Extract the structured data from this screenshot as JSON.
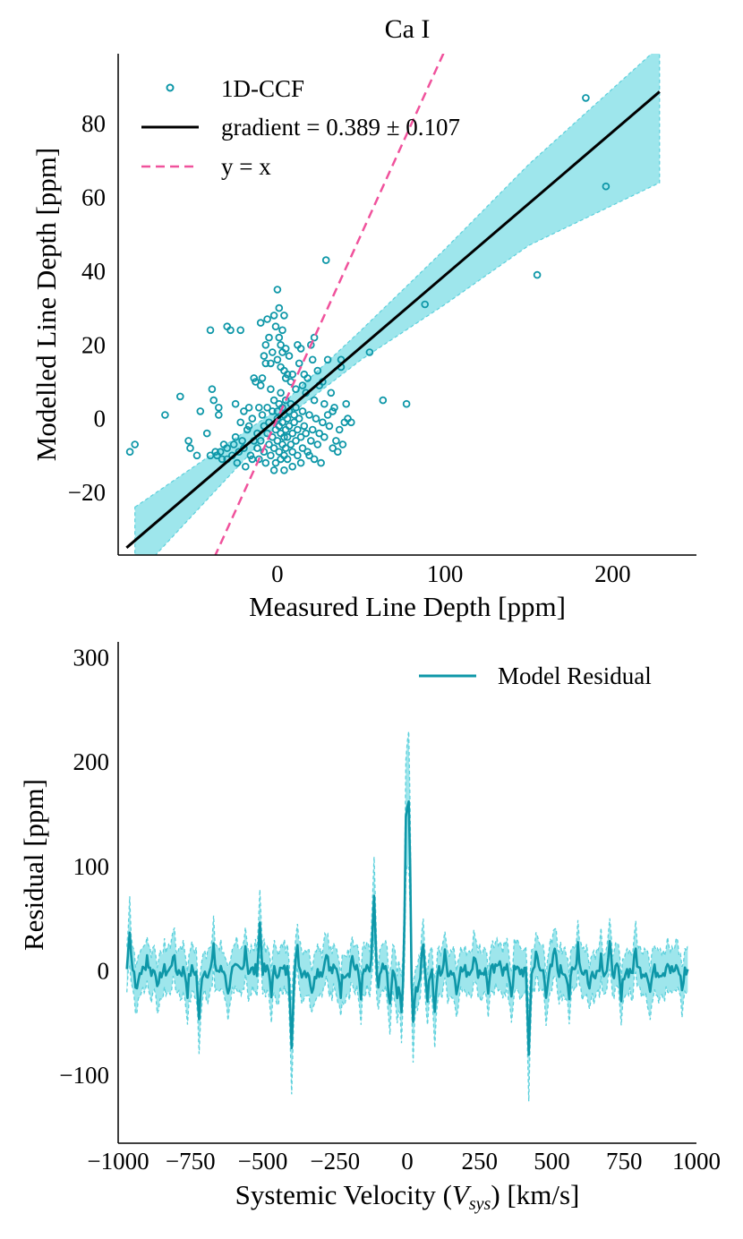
{
  "colors": {
    "series": "#0e97a8",
    "band": "#9ee6ec",
    "band_edge": "#5cd0dc",
    "fit": "#000000",
    "identity": "#f0529c",
    "axis": "#000000"
  },
  "chart_data": [
    {
      "type": "scatter",
      "title": "Ca I",
      "xlabel": "Measured Line Depth [ppm]",
      "ylabel": "Modelled Line Depth [ppm]",
      "xlim": [
        -95,
        250
      ],
      "ylim": [
        -37,
        99
      ],
      "xticks": [
        0,
        100,
        200
      ],
      "yticks": [
        -20,
        0,
        20,
        40,
        60,
        80
      ],
      "xtick_labels": [
        "0",
        "100",
        "200"
      ],
      "ytick_labels": [
        "−20",
        "0",
        "20",
        "40",
        "60",
        "80"
      ],
      "legend": {
        "position": "top-left",
        "entries": [
          "1D-CCF",
          "gradient = 0.389 ± 0.107",
          "y = x"
        ]
      },
      "fit": {
        "gradient": 0.389,
        "gradient_err": 0.107,
        "x_range": [
          -90,
          228
        ]
      },
      "identity_line": {
        "x_range": [
          -80,
          100
        ]
      },
      "band": {
        "x": [
          -85,
          0,
          10,
          50,
          100,
          150,
          228
        ],
        "upper": [
          -24,
          2.5,
          7,
          24,
          46,
          69,
          101
        ],
        "lower": [
          -43,
          -1.5,
          2,
          16,
          31,
          47,
          64
        ]
      },
      "points": [
        [
          -88,
          -9
        ],
        [
          -85,
          -7
        ],
        [
          -67,
          1
        ],
        [
          -58,
          6
        ],
        [
          -53,
          -6
        ],
        [
          -52,
          -8
        ],
        [
          -48,
          -10
        ],
        [
          -46,
          2
        ],
        [
          -42,
          -4
        ],
        [
          -40,
          -10
        ],
        [
          -40,
          24
        ],
        [
          -39,
          8
        ],
        [
          -38,
          5
        ],
        [
          -37,
          -9
        ],
        [
          -36,
          -10
        ],
        [
          -35,
          1
        ],
        [
          -35,
          3
        ],
        [
          -34,
          -9
        ],
        [
          -33,
          -11
        ],
        [
          -30,
          -8
        ],
        [
          -30,
          25
        ],
        [
          -28,
          24
        ],
        [
          -27,
          -10
        ],
        [
          -26,
          -7
        ],
        [
          -25,
          -5
        ],
        [
          -25,
          4
        ],
        [
          -24,
          -12
        ],
        [
          -22,
          24
        ],
        [
          -22,
          -1
        ],
        [
          -21,
          -6
        ],
        [
          -20,
          -8
        ],
        [
          -20,
          2
        ],
        [
          -18,
          -3
        ],
        [
          -17,
          3
        ],
        [
          -16,
          -10
        ],
        [
          -15,
          0
        ],
        [
          -15,
          -11
        ],
        [
          -14,
          11
        ],
        [
          -13,
          10
        ],
        [
          -12,
          -4
        ],
        [
          -12,
          -8
        ],
        [
          -11,
          3
        ],
        [
          -10,
          -6
        ],
        [
          -10,
          26
        ],
        [
          -9,
          1
        ],
        [
          -8,
          -2
        ],
        [
          -8,
          -9
        ],
        [
          -7,
          20
        ],
        [
          -7,
          -12
        ],
        [
          -6,
          -4
        ],
        [
          -6,
          3
        ],
        [
          -5,
          -7
        ],
        [
          -5,
          -1
        ],
        [
          -4,
          8
        ],
        [
          -4,
          -10
        ],
        [
          -3,
          2
        ],
        [
          -3,
          -5
        ],
        [
          -2,
          -8
        ],
        [
          -2,
          5
        ],
        [
          -1,
          -3
        ],
        [
          -1,
          -12
        ],
        [
          0,
          0
        ],
        [
          0,
          2
        ],
        [
          0,
          -6
        ],
        [
          1,
          -2
        ],
        [
          1,
          -9
        ],
        [
          1,
          4
        ],
        [
          2,
          -4
        ],
        [
          2,
          7
        ],
        [
          2,
          -11
        ],
        [
          3,
          -1
        ],
        [
          3,
          -7
        ],
        [
          3,
          3
        ],
        [
          4,
          -5
        ],
        [
          4,
          1
        ],
        [
          4,
          -10
        ],
        [
          5,
          -3
        ],
        [
          5,
          5
        ],
        [
          5,
          -8
        ],
        [
          6,
          0
        ],
        [
          6,
          -5
        ],
        [
          6,
          -11
        ],
        [
          7,
          2
        ],
        [
          7,
          -2
        ],
        [
          8,
          -7
        ],
        [
          8,
          4
        ],
        [
          9,
          -4
        ],
        [
          9,
          -9
        ],
        [
          10,
          1
        ],
        [
          10,
          -1
        ],
        [
          11,
          -6
        ],
        [
          11,
          3
        ],
        [
          12,
          -3
        ],
        [
          12,
          -10
        ],
        [
          13,
          0
        ],
        [
          14,
          -5
        ],
        [
          15,
          2
        ],
        [
          15,
          -8
        ],
        [
          16,
          -2
        ],
        [
          17,
          -4
        ],
        [
          18,
          -9
        ],
        [
          19,
          1
        ],
        [
          20,
          -6
        ],
        [
          21,
          -3
        ],
        [
          22,
          -11
        ],
        [
          23,
          0
        ],
        [
          24,
          -7
        ],
        [
          25,
          -4
        ],
        [
          -6,
          27
        ],
        [
          -5,
          22
        ],
        [
          -4,
          15
        ],
        [
          -3,
          18
        ],
        [
          -2,
          28
        ],
        [
          -1,
          25
        ],
        [
          0,
          16
        ],
        [
          0,
          35
        ],
        [
          1,
          30
        ],
        [
          1,
          22
        ],
        [
          2,
          20
        ],
        [
          2,
          14
        ],
        [
          3,
          24
        ],
        [
          3,
          18
        ],
        [
          4,
          13
        ],
        [
          4,
          28
        ],
        [
          5,
          11
        ],
        [
          5,
          19
        ],
        [
          6,
          12
        ],
        [
          7,
          17
        ],
        [
          8,
          10
        ],
        [
          9,
          12
        ],
        [
          -8,
          17
        ],
        [
          -7,
          15
        ],
        [
          -9,
          11
        ],
        [
          -10,
          9
        ],
        [
          11,
          8
        ],
        [
          12,
          20
        ],
        [
          13,
          15
        ],
        [
          14,
          19
        ],
        [
          15,
          9
        ],
        [
          16,
          12
        ],
        [
          17,
          7
        ],
        [
          18,
          11
        ],
        [
          20,
          20
        ],
        [
          21,
          16
        ],
        [
          22,
          22
        ],
        [
          24,
          13
        ],
        [
          25,
          9
        ],
        [
          27,
          10
        ],
        [
          28,
          4
        ],
        [
          29,
          43
        ],
        [
          30,
          16
        ],
        [
          31,
          -2
        ],
        [
          32,
          7
        ],
        [
          33,
          -8
        ],
        [
          34,
          3
        ],
        [
          35,
          -6
        ],
        [
          36,
          -9
        ],
        [
          37,
          -3
        ],
        [
          38,
          14
        ],
        [
          38,
          16
        ],
        [
          39,
          -7
        ],
        [
          40,
          -1
        ],
        [
          41,
          4
        ],
        [
          42,
          0
        ],
        [
          44,
          -1
        ],
        [
          55,
          18
        ],
        [
          63,
          5
        ],
        [
          77,
          4
        ],
        [
          88,
          31
        ],
        [
          155,
          39
        ],
        [
          184,
          87
        ],
        [
          196,
          63
        ],
        [
          -30,
          -11
        ],
        [
          -32,
          -7
        ],
        [
          -19,
          -13
        ],
        [
          -23,
          -9
        ],
        [
          -14,
          -6
        ],
        [
          26,
          -12
        ],
        [
          19,
          -10
        ],
        [
          28,
          -5
        ],
        [
          -2,
          -14
        ],
        [
          4,
          -14
        ],
        [
          9,
          -13
        ],
        [
          -11,
          -11
        ],
        [
          14,
          -12
        ],
        [
          -17,
          -2
        ],
        [
          22,
          5
        ],
        [
          27,
          -1
        ],
        [
          30,
          1
        ],
        [
          33,
          2
        ]
      ]
    },
    {
      "type": "line",
      "title": "",
      "xlabel": "Systemic Velocity ($V_{sys}$) [km/s]",
      "xlabel_parts": [
        "Systemic Velocity ",
        "(",
        "V",
        "sys",
        ")",
        " [km/s]"
      ],
      "ylabel": "Residual [ppm]",
      "xlim": [
        -1000,
        1000
      ],
      "ylim": [
        -165,
        315
      ],
      "xticks": [
        -1000,
        -750,
        -500,
        -250,
        0,
        250,
        500,
        750,
        1000
      ],
      "yticks": [
        -100,
        0,
        100,
        200,
        300
      ],
      "xtick_labels": [
        "−1000",
        "−750",
        "−500",
        "−250",
        "0",
        "250",
        "500",
        "750",
        "1000"
      ],
      "ytick_labels": [
        "−100",
        "0",
        "100",
        "200",
        "300"
      ],
      "legend": {
        "position": "top-right",
        "entries": [
          "Model Residual"
        ]
      },
      "band_halfwidth": 22,
      "series": [
        {
          "name": "Model Residual",
          "x_range": [
            -970,
            970
          ],
          "step": 5,
          "baseline": 0,
          "features": [
            {
              "x": -960,
              "y": 42
            },
            {
              "x": -935,
              "y": -22
            },
            {
              "x": -900,
              "y": 15
            },
            {
              "x": -860,
              "y": -18
            },
            {
              "x": -810,
              "y": 18
            },
            {
              "x": -760,
              "y": -20
            },
            {
              "x": -720,
              "y": -50
            },
            {
              "x": -670,
              "y": 20
            },
            {
              "x": -620,
              "y": -25
            },
            {
              "x": -560,
              "y": 26
            },
            {
              "x": -510,
              "y": 45
            },
            {
              "x": -470,
              "y": -20
            },
            {
              "x": -400,
              "y": -68
            },
            {
              "x": -380,
              "y": 20
            },
            {
              "x": -330,
              "y": -25
            },
            {
              "x": -280,
              "y": 22
            },
            {
              "x": -230,
              "y": -20
            },
            {
              "x": -190,
              "y": 15
            },
            {
              "x": -160,
              "y": -22
            },
            {
              "x": -115,
              "y": 73
            },
            {
              "x": -100,
              "y": -20
            },
            {
              "x": -60,
              "y": -38
            },
            {
              "x": -35,
              "y": -30
            },
            {
              "x": -20,
              "y": -45
            },
            {
              "x": -5,
              "y": 112
            },
            {
              "x": 0,
              "y": 78
            },
            {
              "x": 7,
              "y": 130
            },
            {
              "x": 20,
              "y": -52
            },
            {
              "x": 35,
              "y": -20
            },
            {
              "x": 55,
              "y": 25
            },
            {
              "x": 70,
              "y": -25
            },
            {
              "x": 95,
              "y": -45
            },
            {
              "x": 130,
              "y": 15
            },
            {
              "x": 170,
              "y": -20
            },
            {
              "x": 230,
              "y": 18
            },
            {
              "x": 280,
              "y": -18
            },
            {
              "x": 320,
              "y": 15
            },
            {
              "x": 360,
              "y": -22
            },
            {
              "x": 420,
              "y": -78
            },
            {
              "x": 445,
              "y": 20
            },
            {
              "x": 480,
              "y": -20
            },
            {
              "x": 510,
              "y": 22
            },
            {
              "x": 560,
              "y": -25
            },
            {
              "x": 590,
              "y": 28
            },
            {
              "x": 630,
              "y": -18
            },
            {
              "x": 670,
              "y": 15
            },
            {
              "x": 700,
              "y": 22
            },
            {
              "x": 740,
              "y": -30
            },
            {
              "x": 790,
              "y": 20
            },
            {
              "x": 840,
              "y": -20
            },
            {
              "x": 900,
              "y": 12
            },
            {
              "x": 950,
              "y": -18
            }
          ]
        }
      ]
    }
  ]
}
